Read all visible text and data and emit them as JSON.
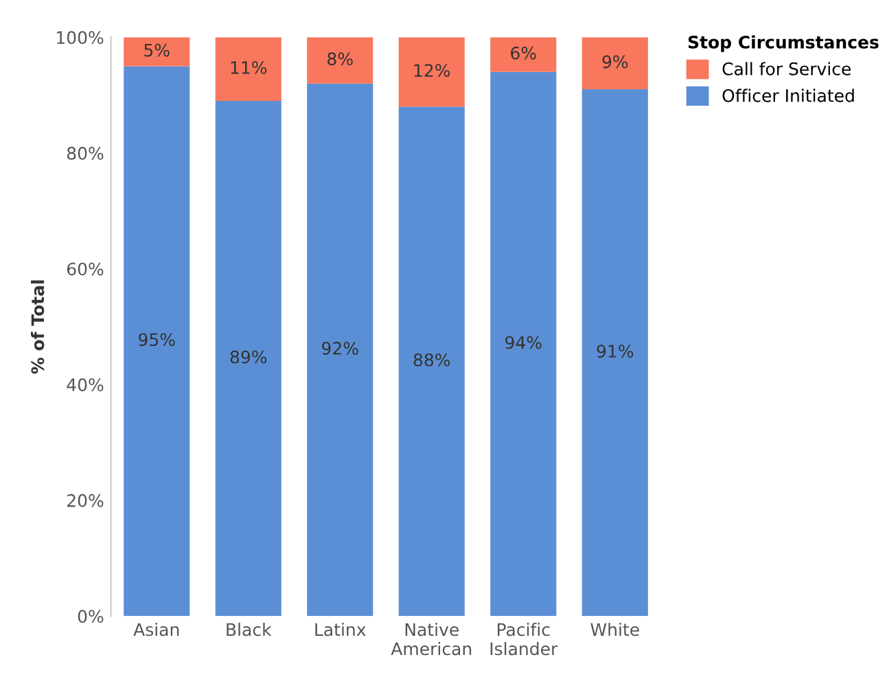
{
  "chart_data": {
    "type": "bar",
    "stacked": true,
    "ylabel": "% of Total",
    "legend_title": "Stop Circumstances",
    "legend": "top right",
    "categories": [
      "Asian",
      "Black",
      "Latinx",
      "Native American",
      "Pacific Islander",
      "White"
    ],
    "series": [
      {
        "name": "Officer Initiated",
        "color": "#5b8fd5",
        "values": [
          95,
          89,
          92,
          88,
          94,
          91
        ],
        "value_labels": [
          "95%",
          "89%",
          "92%",
          "88%",
          "94%",
          "91%"
        ]
      },
      {
        "name": "Call for Service",
        "color": "#f8775d",
        "values": [
          5,
          11,
          8,
          12,
          6,
          9
        ],
        "value_labels": [
          "5%",
          "11%",
          "8%",
          "12%",
          "6%",
          "9%"
        ]
      }
    ],
    "ylim": [
      0,
      100
    ],
    "yticks": [
      {
        "value": 0,
        "label": "0%"
      },
      {
        "value": 20,
        "label": "20%"
      },
      {
        "value": 40,
        "label": "40%"
      },
      {
        "value": 60,
        "label": "60%"
      },
      {
        "value": 80,
        "label": "80%"
      },
      {
        "value": 100,
        "label": "100%"
      }
    ],
    "grid": false
  }
}
